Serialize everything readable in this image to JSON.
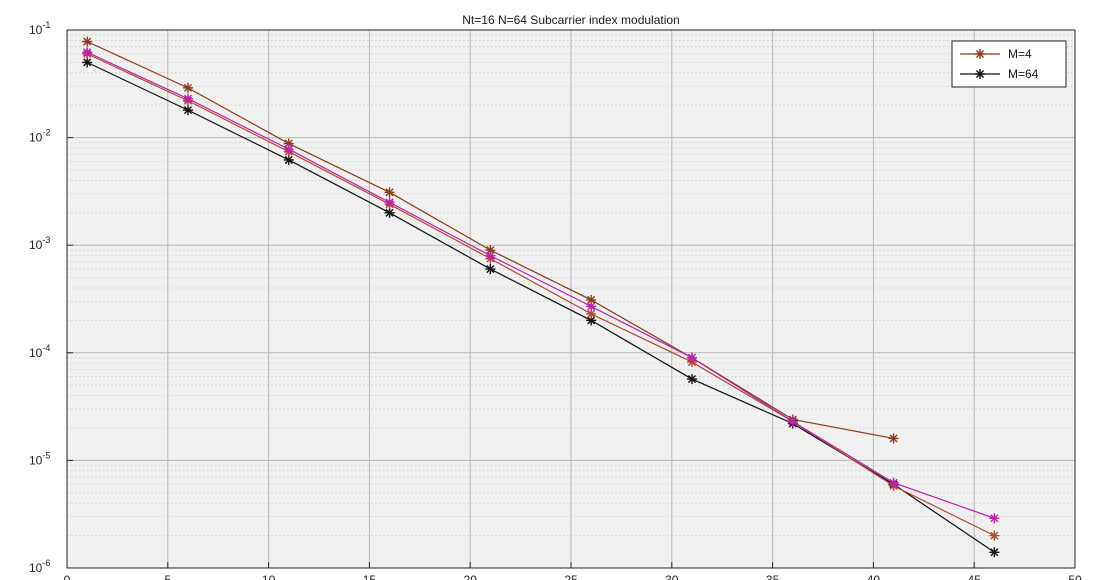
{
  "chart_data": {
    "type": "line",
    "title": "Nt=16 N=64 Subcarrier index modulation",
    "xlabel": "",
    "ylabel": "",
    "xlim": [
      0,
      50
    ],
    "ylim": [
      1e-06,
      0.1
    ],
    "y_scale": "log",
    "grid": true,
    "minor_grid": true,
    "x_ticks": [
      0,
      5,
      10,
      15,
      20,
      25,
      30,
      35,
      40,
      45,
      50
    ],
    "x_tick_labels": [
      "0",
      "5",
      "10",
      "15",
      "20",
      "25",
      "30",
      "35",
      "40",
      "45",
      "50"
    ],
    "y_tick_labels": [
      {
        "base": "10",
        "exp": "-1"
      },
      {
        "base": "10",
        "exp": "-2"
      },
      {
        "base": "10",
        "exp": "-3"
      },
      {
        "base": "10",
        "exp": "-4"
      },
      {
        "base": "10",
        "exp": "-5"
      },
      {
        "base": "10",
        "exp": "-6"
      }
    ],
    "legend_position": "top-right",
    "series": [
      {
        "name": "M=4",
        "color": "#8b3a1a",
        "marker": "asterisk",
        "x": [
          1,
          6,
          11,
          16,
          21,
          26,
          31,
          36,
          41
        ],
        "y": [
          0.078,
          0.029,
          0.0088,
          0.0031,
          0.0009,
          0.00031,
          9e-05,
          2.4e-05,
          1.6e-05
        ]
      },
      {
        "name": "M=64",
        "color": "#111111",
        "marker": "asterisk",
        "x": [
          1,
          6,
          11,
          16,
          21,
          26,
          31,
          36,
          41,
          46
        ],
        "y": [
          0.05,
          0.018,
          0.0062,
          0.002,
          0.0006,
          0.0002,
          5.7e-05,
          2.2e-05,
          6e-06,
          1.4e-06
        ]
      },
      {
        "color": "#b5482a",
        "marker": "asterisk",
        "x": [
          1,
          6,
          11,
          16,
          21,
          26,
          31,
          36,
          41,
          46
        ],
        "y": [
          0.06,
          0.022,
          0.0074,
          0.0024,
          0.00075,
          0.00023,
          8.2e-05,
          2.3e-05,
          5.8e-06,
          2e-06
        ]
      },
      {
        "color": "#c01fb0",
        "marker": "asterisk",
        "x": [
          1,
          6,
          11,
          16,
          21,
          26,
          31,
          36,
          41,
          46
        ],
        "y": [
          0.062,
          0.023,
          0.0078,
          0.0025,
          0.0008,
          0.00027,
          9e-05,
          2.3e-05,
          6.2e-06,
          2.9e-06
        ]
      }
    ]
  }
}
